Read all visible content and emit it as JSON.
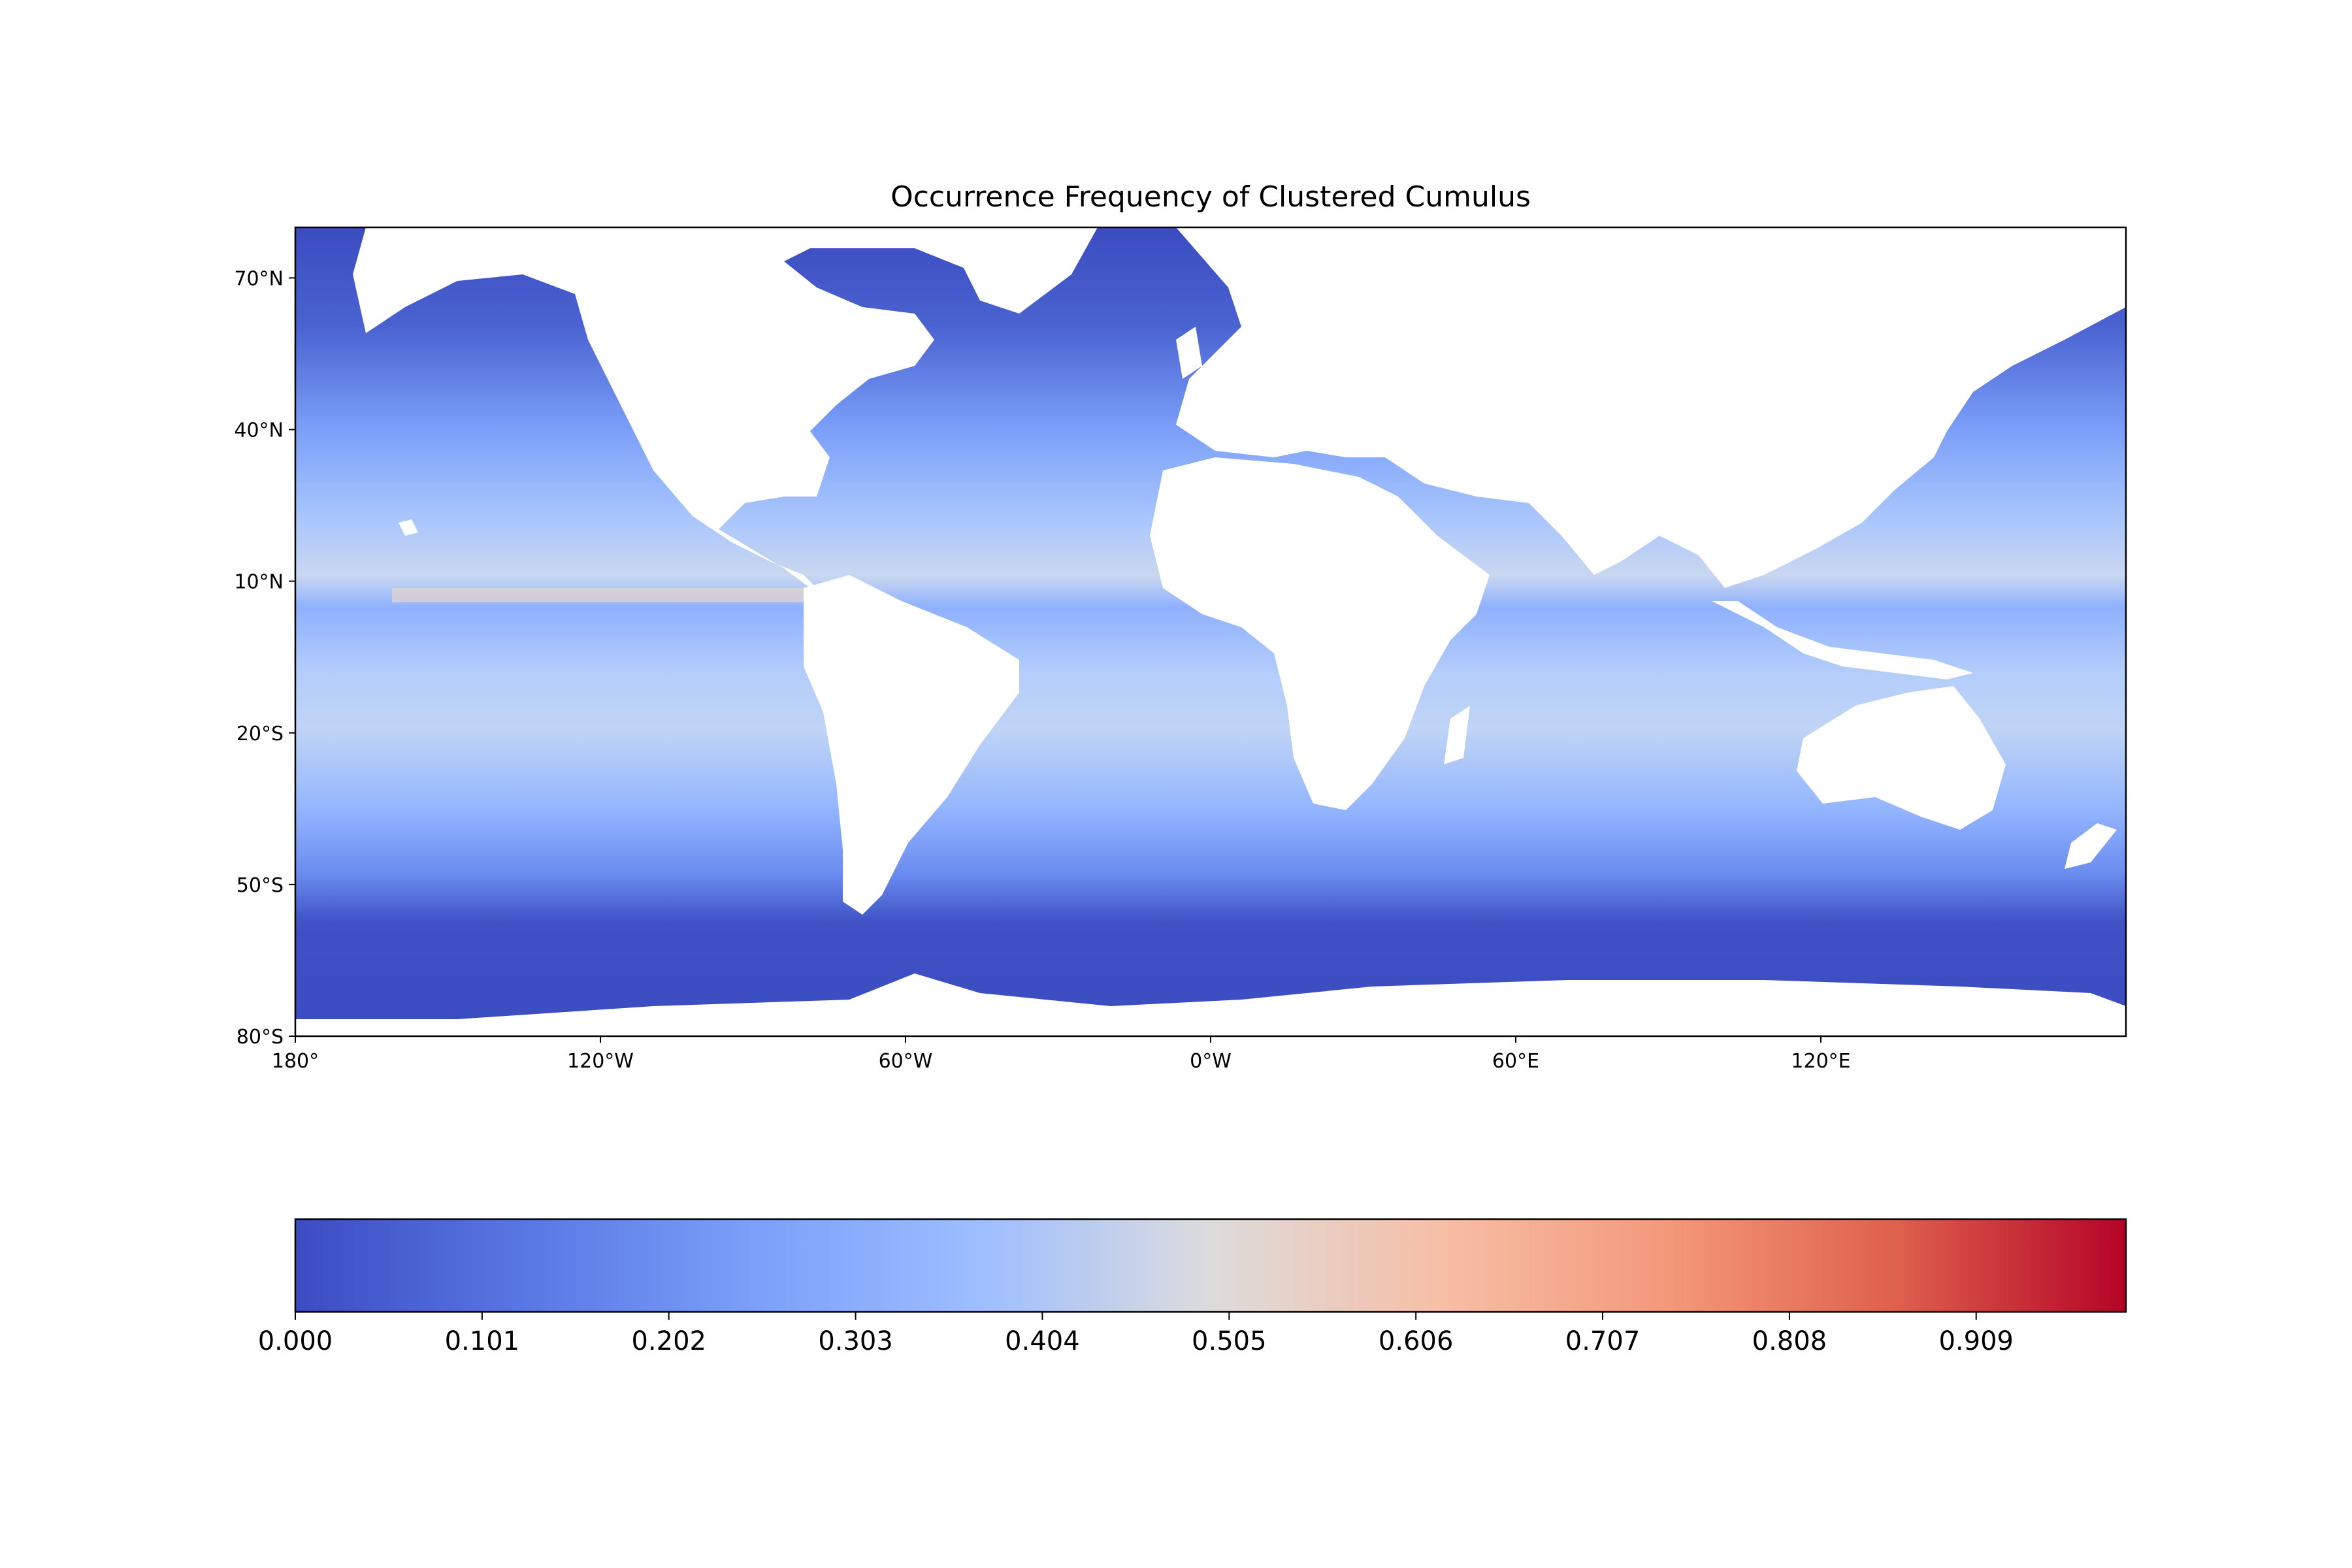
{
  "title": "Occurrence Frequency of  Clustered Cumulus",
  "map": {
    "projection": "PlateCarree",
    "lon_range": [
      -180,
      180
    ],
    "lat_range": [
      -80,
      80
    ],
    "land_color": "#ffffff",
    "lon_ticks": [
      {
        "value": -180,
        "label": "180°"
      },
      {
        "value": -120,
        "label": "120°W"
      },
      {
        "value": -60,
        "label": "60°W"
      },
      {
        "value": 0,
        "label": "0°W"
      },
      {
        "value": 60,
        "label": "60°E"
      },
      {
        "value": 120,
        "label": "120°E"
      }
    ],
    "lat_ticks": [
      {
        "value": 70,
        "label": "70°N"
      },
      {
        "value": 40,
        "label": "40°N"
      },
      {
        "value": 10,
        "label": "10°N"
      },
      {
        "value": -20,
        "label": "20°S"
      },
      {
        "value": -50,
        "label": "50°S"
      },
      {
        "value": -80,
        "label": "80°S"
      }
    ]
  },
  "colorbar": {
    "colormap": "coolwarm",
    "range": [
      0,
      0.99
    ],
    "orientation": "horizontal",
    "ticks": [
      {
        "value": 0.0,
        "label": "0.000"
      },
      {
        "value": 0.101,
        "label": "0.101"
      },
      {
        "value": 0.202,
        "label": "0.202"
      },
      {
        "value": 0.303,
        "label": "0.303"
      },
      {
        "value": 0.404,
        "label": "0.404"
      },
      {
        "value": 0.505,
        "label": "0.505"
      },
      {
        "value": 0.606,
        "label": "0.606"
      },
      {
        "value": 0.707,
        "label": "0.707"
      },
      {
        "value": 0.808,
        "label": "0.808"
      },
      {
        "value": 0.909,
        "label": "0.909"
      }
    ]
  },
  "colors": {
    "low": "#3b4cc0",
    "mid": "#dddcdc",
    "high": "#b40426"
  }
}
